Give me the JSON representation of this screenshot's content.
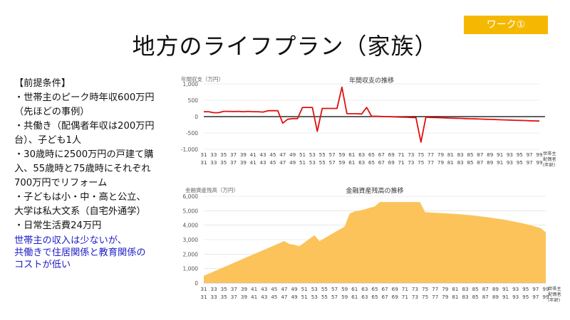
{
  "badge": "ワーク①",
  "title": "地方のライフプラン（家族）",
  "conditions": {
    "heading": "【前提条件】",
    "lines": [
      "・世帯主のピーク時年収600万円",
      "（先ほどの事例）",
      "・共働き（配偶者年収は200万円",
      "台）、子ども1人",
      "・30歳時に2500万円の戸建て購",
      "入、55歳時と75歳時にそれぞれ",
      "700万円でリフォーム",
      "・子どもは小・中・高と公立、",
      "大学は私大文系（自宅外通学）",
      "・日常生活費24万円"
    ],
    "note": [
      "世帯主の収入は少ないが、",
      "共働きで住居関係と教育関係の",
      "コストが低い"
    ]
  },
  "colors": {
    "badge": "#f5b800",
    "line": "#e01010",
    "area": "#fcc35a",
    "note": "#2020c8"
  },
  "axis_labels": {
    "x_row1": [
      "31",
      "33",
      "35",
      "37",
      "39",
      "41",
      "43",
      "45",
      "47",
      "49",
      "51",
      "53",
      "55",
      "57",
      "59",
      "61",
      "63",
      "65",
      "67",
      "69",
      "71",
      "73",
      "75",
      "77",
      "79",
      "81",
      "83",
      "85",
      "87",
      "89",
      "91",
      "93",
      "95",
      "97",
      "99"
    ],
    "x_row2": [
      "31",
      "33",
      "35",
      "37",
      "39",
      "41",
      "43",
      "45",
      "47",
      "49",
      "51",
      "53",
      "55",
      "57",
      "59",
      "61",
      "63",
      "65",
      "67",
      "69",
      "71",
      "73",
      "75",
      "77",
      "79",
      "81",
      "83",
      "85",
      "87",
      "89",
      "91",
      "93",
      "95",
      "97",
      "99"
    ],
    "x_side": [
      "世帯主",
      "配偶者",
      "(年齢)"
    ]
  },
  "chart_data": [
    {
      "type": "line",
      "title": "年間収支の推移",
      "ylabel": "年間収支（万円）",
      "ylim": [
        -1000,
        1000
      ],
      "yticks": [
        "1,000",
        "500",
        "0",
        "-500",
        "-1,000"
      ],
      "x": [
        31,
        32,
        33,
        34,
        35,
        36,
        37,
        38,
        39,
        40,
        41,
        42,
        43,
        44,
        45,
        46,
        47,
        48,
        49,
        50,
        51,
        52,
        53,
        54,
        55,
        56,
        57,
        58,
        59,
        60,
        61,
        62,
        63,
        64,
        65,
        66,
        67,
        68,
        69,
        70,
        71,
        72,
        73,
        74,
        75,
        76,
        77,
        78,
        79,
        80,
        81,
        82,
        83,
        84,
        85,
        86,
        87,
        88,
        89,
        90,
        91,
        92,
        93,
        94,
        95,
        96,
        97,
        98,
        99
      ],
      "series": [
        {
          "values": [
            150,
            150,
            120,
            120,
            160,
            160,
            155,
            160,
            150,
            160,
            150,
            150,
            140,
            180,
            180,
            180,
            -200,
            -80,
            -60,
            -60,
            280,
            280,
            280,
            -450,
            250,
            250,
            250,
            250,
            900,
            90,
            90,
            90,
            80,
            280,
            10,
            10,
            5,
            0,
            -5,
            -10,
            -15,
            -20,
            -25,
            -30,
            -780,
            -20,
            -25,
            -30,
            -35,
            -40,
            -45,
            -50,
            -55,
            -60,
            -65,
            -70,
            -75,
            -80,
            -85,
            -90,
            -95,
            -100,
            -105,
            -110,
            -115,
            -120,
            -125,
            -130,
            -135
          ]
        }
      ]
    },
    {
      "type": "area",
      "title": "金融資産残高の推移",
      "ylabel": "金融資産残高（万円）",
      "ylim": [
        0,
        6000
      ],
      "yticks": [
        "6,000",
        "5,000",
        "4,000",
        "3,000",
        "2,000",
        "1,000",
        "0"
      ],
      "x": [
        31,
        32,
        33,
        34,
        35,
        36,
        37,
        38,
        39,
        40,
        41,
        42,
        43,
        44,
        45,
        46,
        47,
        48,
        49,
        50,
        51,
        52,
        53,
        54,
        55,
        56,
        57,
        58,
        59,
        60,
        61,
        62,
        63,
        64,
        65,
        66,
        67,
        68,
        69,
        70,
        71,
        72,
        73,
        74,
        75,
        76,
        77,
        78,
        79,
        80,
        81,
        82,
        83,
        84,
        85,
        86,
        87,
        88,
        89,
        90,
        91,
        92,
        93,
        94,
        95,
        96,
        97,
        98,
        99
      ],
      "series": [
        {
          "values": [
            500,
            650,
            800,
            950,
            1100,
            1250,
            1400,
            1550,
            1700,
            1850,
            2000,
            2150,
            2300,
            2450,
            2600,
            2750,
            2900,
            2700,
            2650,
            2550,
            2800,
            3050,
            3300,
            2900,
            3100,
            3300,
            3500,
            3700,
            3900,
            4800,
            4950,
            5000,
            5100,
            5200,
            5300,
            5600,
            5600,
            5600,
            5600,
            5600,
            5600,
            5600,
            5600,
            5600,
            4900,
            4880,
            4860,
            4840,
            4820,
            4800,
            4780,
            4750,
            4720,
            4690,
            4650,
            4610,
            4570,
            4520,
            4470,
            4420,
            4360,
            4300,
            4230,
            4160,
            4080,
            4000,
            3900,
            3790,
            3500
          ]
        }
      ]
    }
  ]
}
